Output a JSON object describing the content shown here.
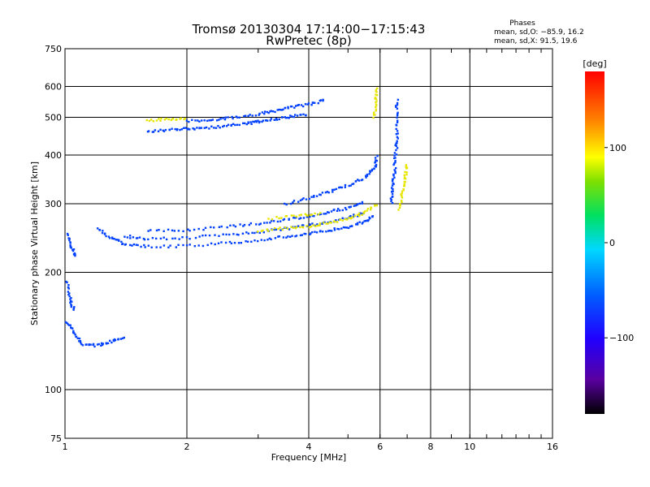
{
  "chart_data": {
    "type": "scatter",
    "title": "Tromsø 20130304 17:14:00−17:15:43",
    "subtitle": "RwPretec (8p)",
    "xlabel": "Frequency [MHz]",
    "ylabel": "Stationary phase Virtual Height [km]",
    "x_scale": "log",
    "y_scale": "log",
    "xlim": [
      1,
      16
    ],
    "ylim": [
      75,
      750
    ],
    "x_ticks": [
      1,
      2,
      4,
      6,
      8,
      10,
      16
    ],
    "x_tick_labels": [
      "1",
      "2",
      "4",
      "6",
      "8",
      "10",
      "16"
    ],
    "y_ticks": [
      75,
      100,
      200,
      300,
      400,
      500,
      600,
      750
    ],
    "y_tick_labels": [
      "75",
      "100",
      "200",
      "300",
      "400",
      "500",
      "600",
      "750"
    ],
    "grid": true,
    "phases_box": {
      "heading": "Phases",
      "line_o": "mean, sd,O: −85.9, 16.2",
      "line_x": "mean, sd,X:  91.5, 19.6"
    },
    "colorbar": {
      "label": "[deg]",
      "min": -180,
      "max": 180,
      "ticks": [
        100,
        0,
        -100
      ],
      "tick_labels": [
        "100",
        "0",
        "−100"
      ]
    },
    "colors": {
      "plus": "#ff0000",
      "orange": "#ff8000",
      "yellow": "#e6e600",
      "green": "#00c000",
      "cyan": "#00c0ff",
      "blue": "#0040ff",
      "purple": "#5000a0"
    },
    "series_traces": [
      {
        "phase": -100,
        "points": [
          [
            1.01,
            150
          ],
          [
            1.05,
            140
          ],
          [
            1.1,
            131
          ],
          [
            1.2,
            130
          ],
          [
            1.3,
            133
          ],
          [
            1.4,
            137
          ]
        ]
      },
      {
        "phase": -100,
        "points": [
          [
            1.01,
            190
          ],
          [
            1.03,
            170
          ],
          [
            1.05,
            160
          ]
        ]
      },
      {
        "phase": -100,
        "points": [
          [
            1.02,
            250
          ],
          [
            1.04,
            230
          ],
          [
            1.06,
            220
          ]
        ]
      },
      {
        "phase": -100,
        "points": [
          [
            1.2,
            260
          ],
          [
            1.3,
            245
          ],
          [
            1.4,
            236
          ],
          [
            1.6,
            233
          ],
          [
            2.0,
            234
          ],
          [
            2.5,
            238
          ],
          [
            3.0,
            242
          ],
          [
            3.5,
            247
          ],
          [
            4.0,
            251
          ],
          [
            4.5,
            257
          ],
          [
            5.0,
            262
          ],
          [
            5.5,
            270
          ],
          [
            5.8,
            280
          ]
        ]
      },
      {
        "phase": -90,
        "points": [
          [
            1.4,
            248
          ],
          [
            1.6,
            244
          ],
          [
            2.0,
            245
          ],
          [
            2.5,
            250
          ],
          [
            3.0,
            254
          ],
          [
            3.5,
            259
          ],
          [
            4.0,
            264
          ],
          [
            4.5,
            270
          ],
          [
            5.0,
            276
          ],
          [
            5.5,
            285
          ]
        ]
      },
      {
        "phase": -80,
        "points": [
          [
            1.6,
            255
          ],
          [
            2.0,
            257
          ],
          [
            2.5,
            262
          ],
          [
            3.0,
            267
          ],
          [
            3.5,
            273
          ],
          [
            4.0,
            279
          ],
          [
            4.5,
            286
          ],
          [
            5.0,
            293
          ],
          [
            5.5,
            303
          ]
        ]
      },
      {
        "phase": 100,
        "points": [
          [
            3.0,
            255
          ],
          [
            3.5,
            260
          ],
          [
            4.0,
            263
          ],
          [
            4.5,
            268
          ],
          [
            5.0,
            275
          ],
          [
            5.5,
            285
          ],
          [
            5.9,
            300
          ]
        ]
      },
      {
        "phase": 100,
        "points": [
          [
            3.2,
            275
          ],
          [
            3.8,
            280
          ],
          [
            4.3,
            284
          ]
        ]
      },
      {
        "phase": -100,
        "points": [
          [
            3.5,
            300
          ],
          [
            4.0,
            310
          ],
          [
            4.5,
            322
          ],
          [
            5.0,
            335
          ],
          [
            5.5,
            350
          ],
          [
            5.8,
            370
          ],
          [
            5.9,
            400
          ]
        ]
      },
      {
        "phase": -100,
        "points": [
          [
            1.6,
            460
          ],
          [
            1.8,
            465
          ],
          [
            2.0,
            468
          ],
          [
            2.2,
            470
          ],
          [
            2.5,
            475
          ],
          [
            2.8,
            482
          ],
          [
            3.0,
            488
          ],
          [
            3.3,
            495
          ],
          [
            3.6,
            502
          ],
          [
            4.0,
            510
          ]
        ]
      },
      {
        "phase": -100,
        "points": [
          [
            2.0,
            490
          ],
          [
            2.3,
            493
          ],
          [
            2.6,
            500
          ],
          [
            3.0,
            510
          ],
          [
            3.3,
            520
          ],
          [
            3.6,
            530
          ],
          [
            4.0,
            540
          ],
          [
            4.4,
            555
          ]
        ]
      },
      {
        "phase": 100,
        "points": [
          [
            1.6,
            490
          ],
          [
            1.8,
            495
          ],
          [
            2.0,
            498
          ]
        ]
      },
      {
        "phase": 100,
        "points": [
          [
            5.8,
            500
          ],
          [
            5.85,
            550
          ],
          [
            5.9,
            600
          ]
        ]
      },
      {
        "phase": -100,
        "points": [
          [
            6.4,
            300
          ],
          [
            6.45,
            330
          ],
          [
            6.5,
            360
          ],
          [
            6.55,
            400
          ],
          [
            6.6,
            440
          ],
          [
            6.6,
            500
          ],
          [
            6.6,
            560
          ]
        ]
      },
      {
        "phase": 100,
        "points": [
          [
            6.7,
            290
          ],
          [
            6.8,
            320
          ],
          [
            6.9,
            350
          ],
          [
            7.0,
            380
          ]
        ]
      }
    ]
  }
}
